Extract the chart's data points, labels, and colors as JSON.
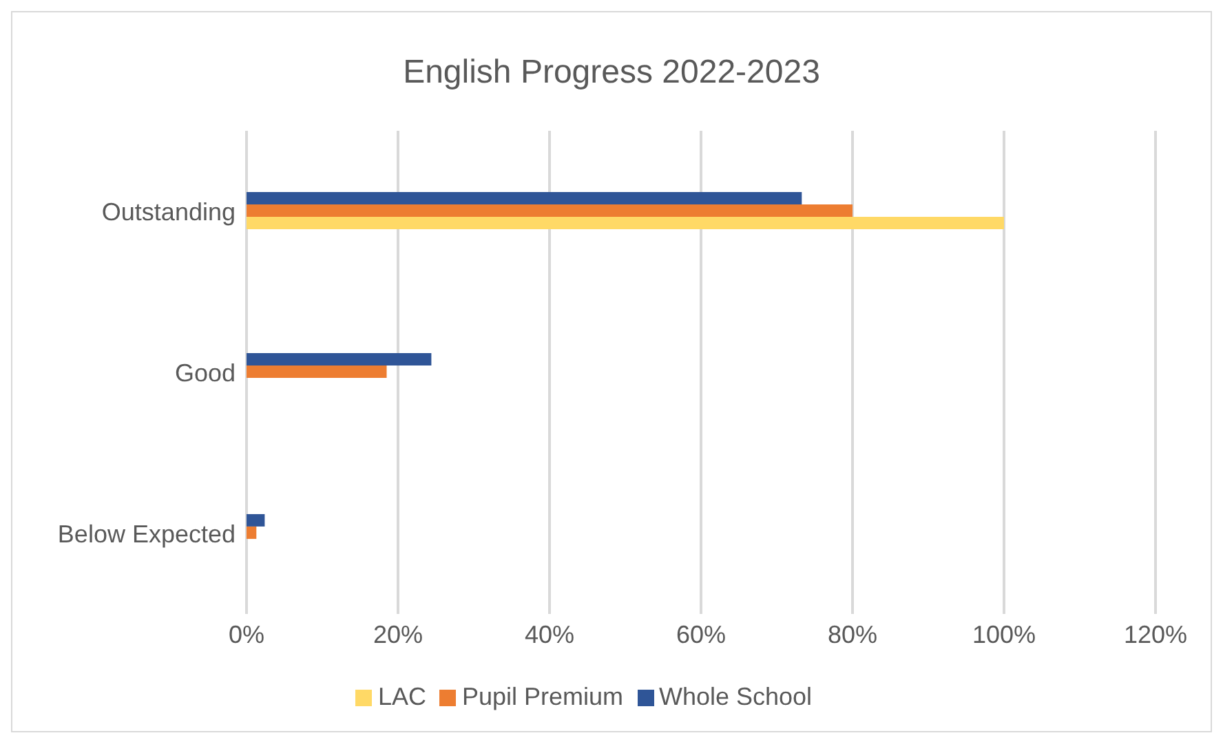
{
  "chart_data": {
    "type": "bar",
    "title": "English Progress 2022-2023",
    "orientation": "horizontal",
    "categories": [
      "Outstanding",
      "Good",
      "Below Expected"
    ],
    "series": [
      {
        "name": "Whole School",
        "color": "#2f5597",
        "values": [
          73.3,
          24.4,
          2.4
        ]
      },
      {
        "name": "Pupil Premium",
        "color": "#ed7d31",
        "values": [
          80,
          18.5,
          1.3
        ]
      },
      {
        "name": "LAC",
        "color": "#ffd966",
        "values": [
          100,
          0,
          0
        ]
      }
    ],
    "xlim": [
      0,
      120
    ],
    "xticks": [
      {
        "value": 0,
        "label": "0%"
      },
      {
        "value": 20,
        "label": "20%"
      },
      {
        "value": 40,
        "label": "40%"
      },
      {
        "value": 60,
        "label": "60%"
      },
      {
        "value": 80,
        "label": "80%"
      },
      {
        "value": 100,
        "label": "100%"
      },
      {
        "value": 120,
        "label": "120%"
      }
    ],
    "grid": "x",
    "legend": "bottom"
  }
}
